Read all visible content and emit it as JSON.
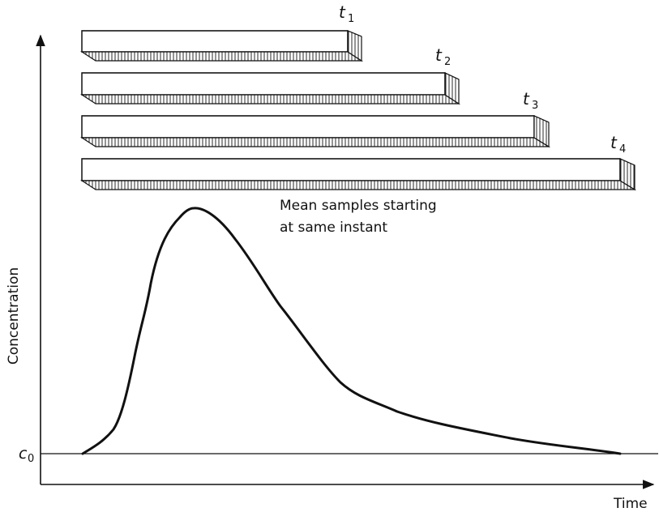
{
  "axes": {
    "y_label": "Concentration",
    "x_label": "Time",
    "baseline_symbol": "c",
    "baseline_subscript": "0"
  },
  "samples": [
    {
      "symbol": "t",
      "subscript": "1"
    },
    {
      "symbol": "t",
      "subscript": "2"
    },
    {
      "symbol": "t",
      "subscript": "3"
    },
    {
      "symbol": "t",
      "subscript": "4"
    }
  ],
  "annotation": {
    "line1": "Mean samples starting",
    "line2": "at same instant"
  }
}
